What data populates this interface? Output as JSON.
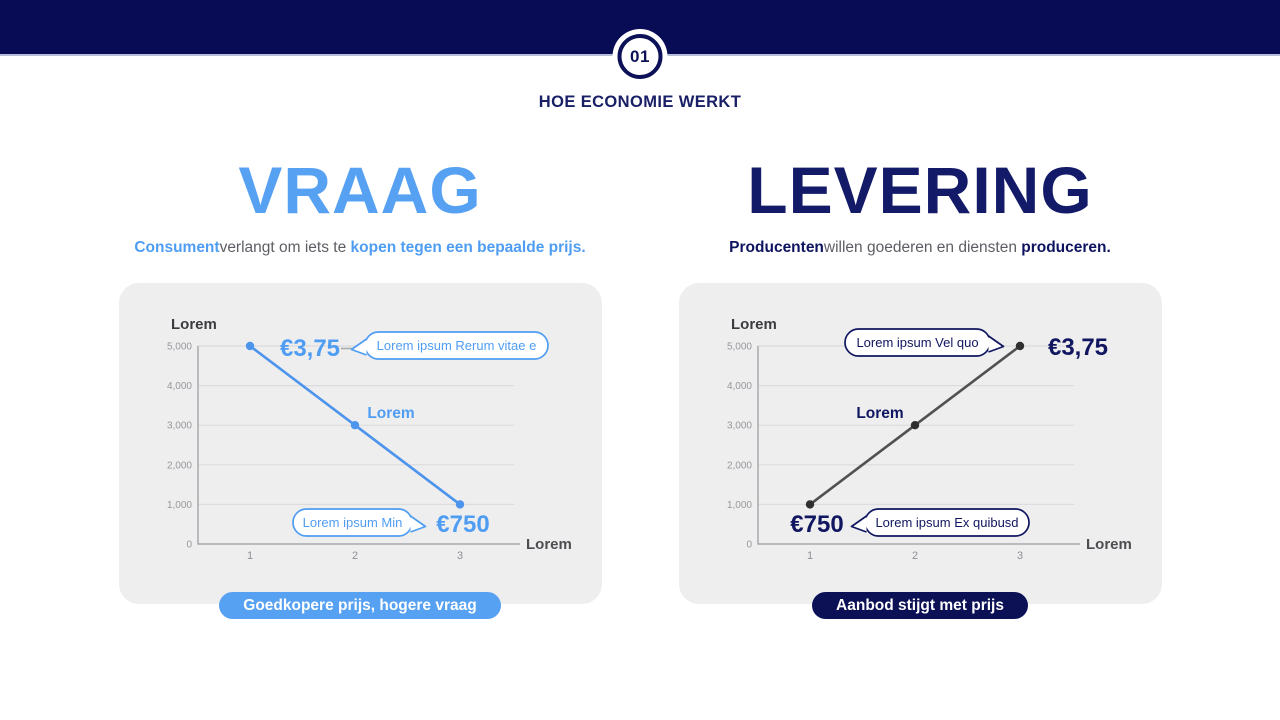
{
  "header": {
    "badge_number": "01",
    "kicker": "HOE ECONOMIE WERKT"
  },
  "colors": {
    "topbar_navy": "#080c55",
    "kicker_navy": "#1a2066",
    "demand_accent_blue": "#57a1f3",
    "supply_accent_navy": "#10165f",
    "supply_pill_navy": "#0c1156",
    "card_background": "#eeeeef",
    "subtitle_gray": "#5d5d64"
  },
  "demand": {
    "title": "VRAAG",
    "subtitle": [
      {
        "text": "Consument",
        "accent": true
      },
      {
        "text": "verlangt om iets te ",
        "accent": false
      },
      {
        "text": "kopen tegen een bepaalde prijs.",
        "accent": true
      }
    ],
    "caption_pill": "Goedkopere prijs, hogere vraag"
  },
  "supply": {
    "title": "LEVERING",
    "subtitle": [
      {
        "text": "Producenten",
        "accent": true
      },
      {
        "text": "willen goederen en diensten ",
        "accent": false
      },
      {
        "text": "produceren.",
        "accent": true
      }
    ],
    "caption_pill": "Aanbod stijgt met prijs"
  },
  "chart_data": [
    {
      "id": "demand",
      "type": "line",
      "title": "Demand curve (Vraag)",
      "x": [
        1,
        2,
        3
      ],
      "values": [
        5000,
        3000,
        1000
      ],
      "xlabel": "Lorem",
      "ylabel": "Lorem",
      "ylim": [
        0,
        5000
      ],
      "yticks": [
        5000,
        4000,
        3000,
        2000,
        1000,
        0
      ],
      "ytick_labels": [
        "5,000",
        "4,000",
        "3,000",
        "2,000",
        "1,000",
        "0"
      ],
      "xtick_labels": [
        "1",
        "2",
        "3"
      ],
      "grid": true,
      "legend": "none",
      "line_color": "#4d94ed",
      "dot_color": "#4d94ed",
      "accent": "#4f9df3",
      "annotations": {
        "start_price": "€3,75",
        "end_price": "€750",
        "mid_point_label": "Lorem",
        "bubble_top": "Lorem ipsum Rerum vitae e",
        "bubble_bottom": "Lorem ipsum Min"
      }
    },
    {
      "id": "supply",
      "type": "line",
      "title": "Supply curve (Levering)",
      "x": [
        1,
        2,
        3
      ],
      "values": [
        1000,
        3000,
        5000
      ],
      "xlabel": "Lorem",
      "ylabel": "Lorem",
      "ylim": [
        0,
        5000
      ],
      "yticks": [
        5000,
        4000,
        3000,
        2000,
        1000,
        0
      ],
      "ytick_labels": [
        "5,000",
        "4,000",
        "3,000",
        "2,000",
        "1,000",
        "0"
      ],
      "xtick_labels": [
        "1",
        "2",
        "3"
      ],
      "grid": true,
      "legend": "none",
      "line_color": "#53514f",
      "dot_color": "#2f2f2f",
      "accent": "#10165f",
      "annotations": {
        "start_price": "€750",
        "end_price": "€3,75",
        "mid_point_label": "Lorem",
        "bubble_top": "Lorem ipsum Vel quo",
        "bubble_bottom": "Lorem ipsum Ex quibusd"
      }
    }
  ]
}
